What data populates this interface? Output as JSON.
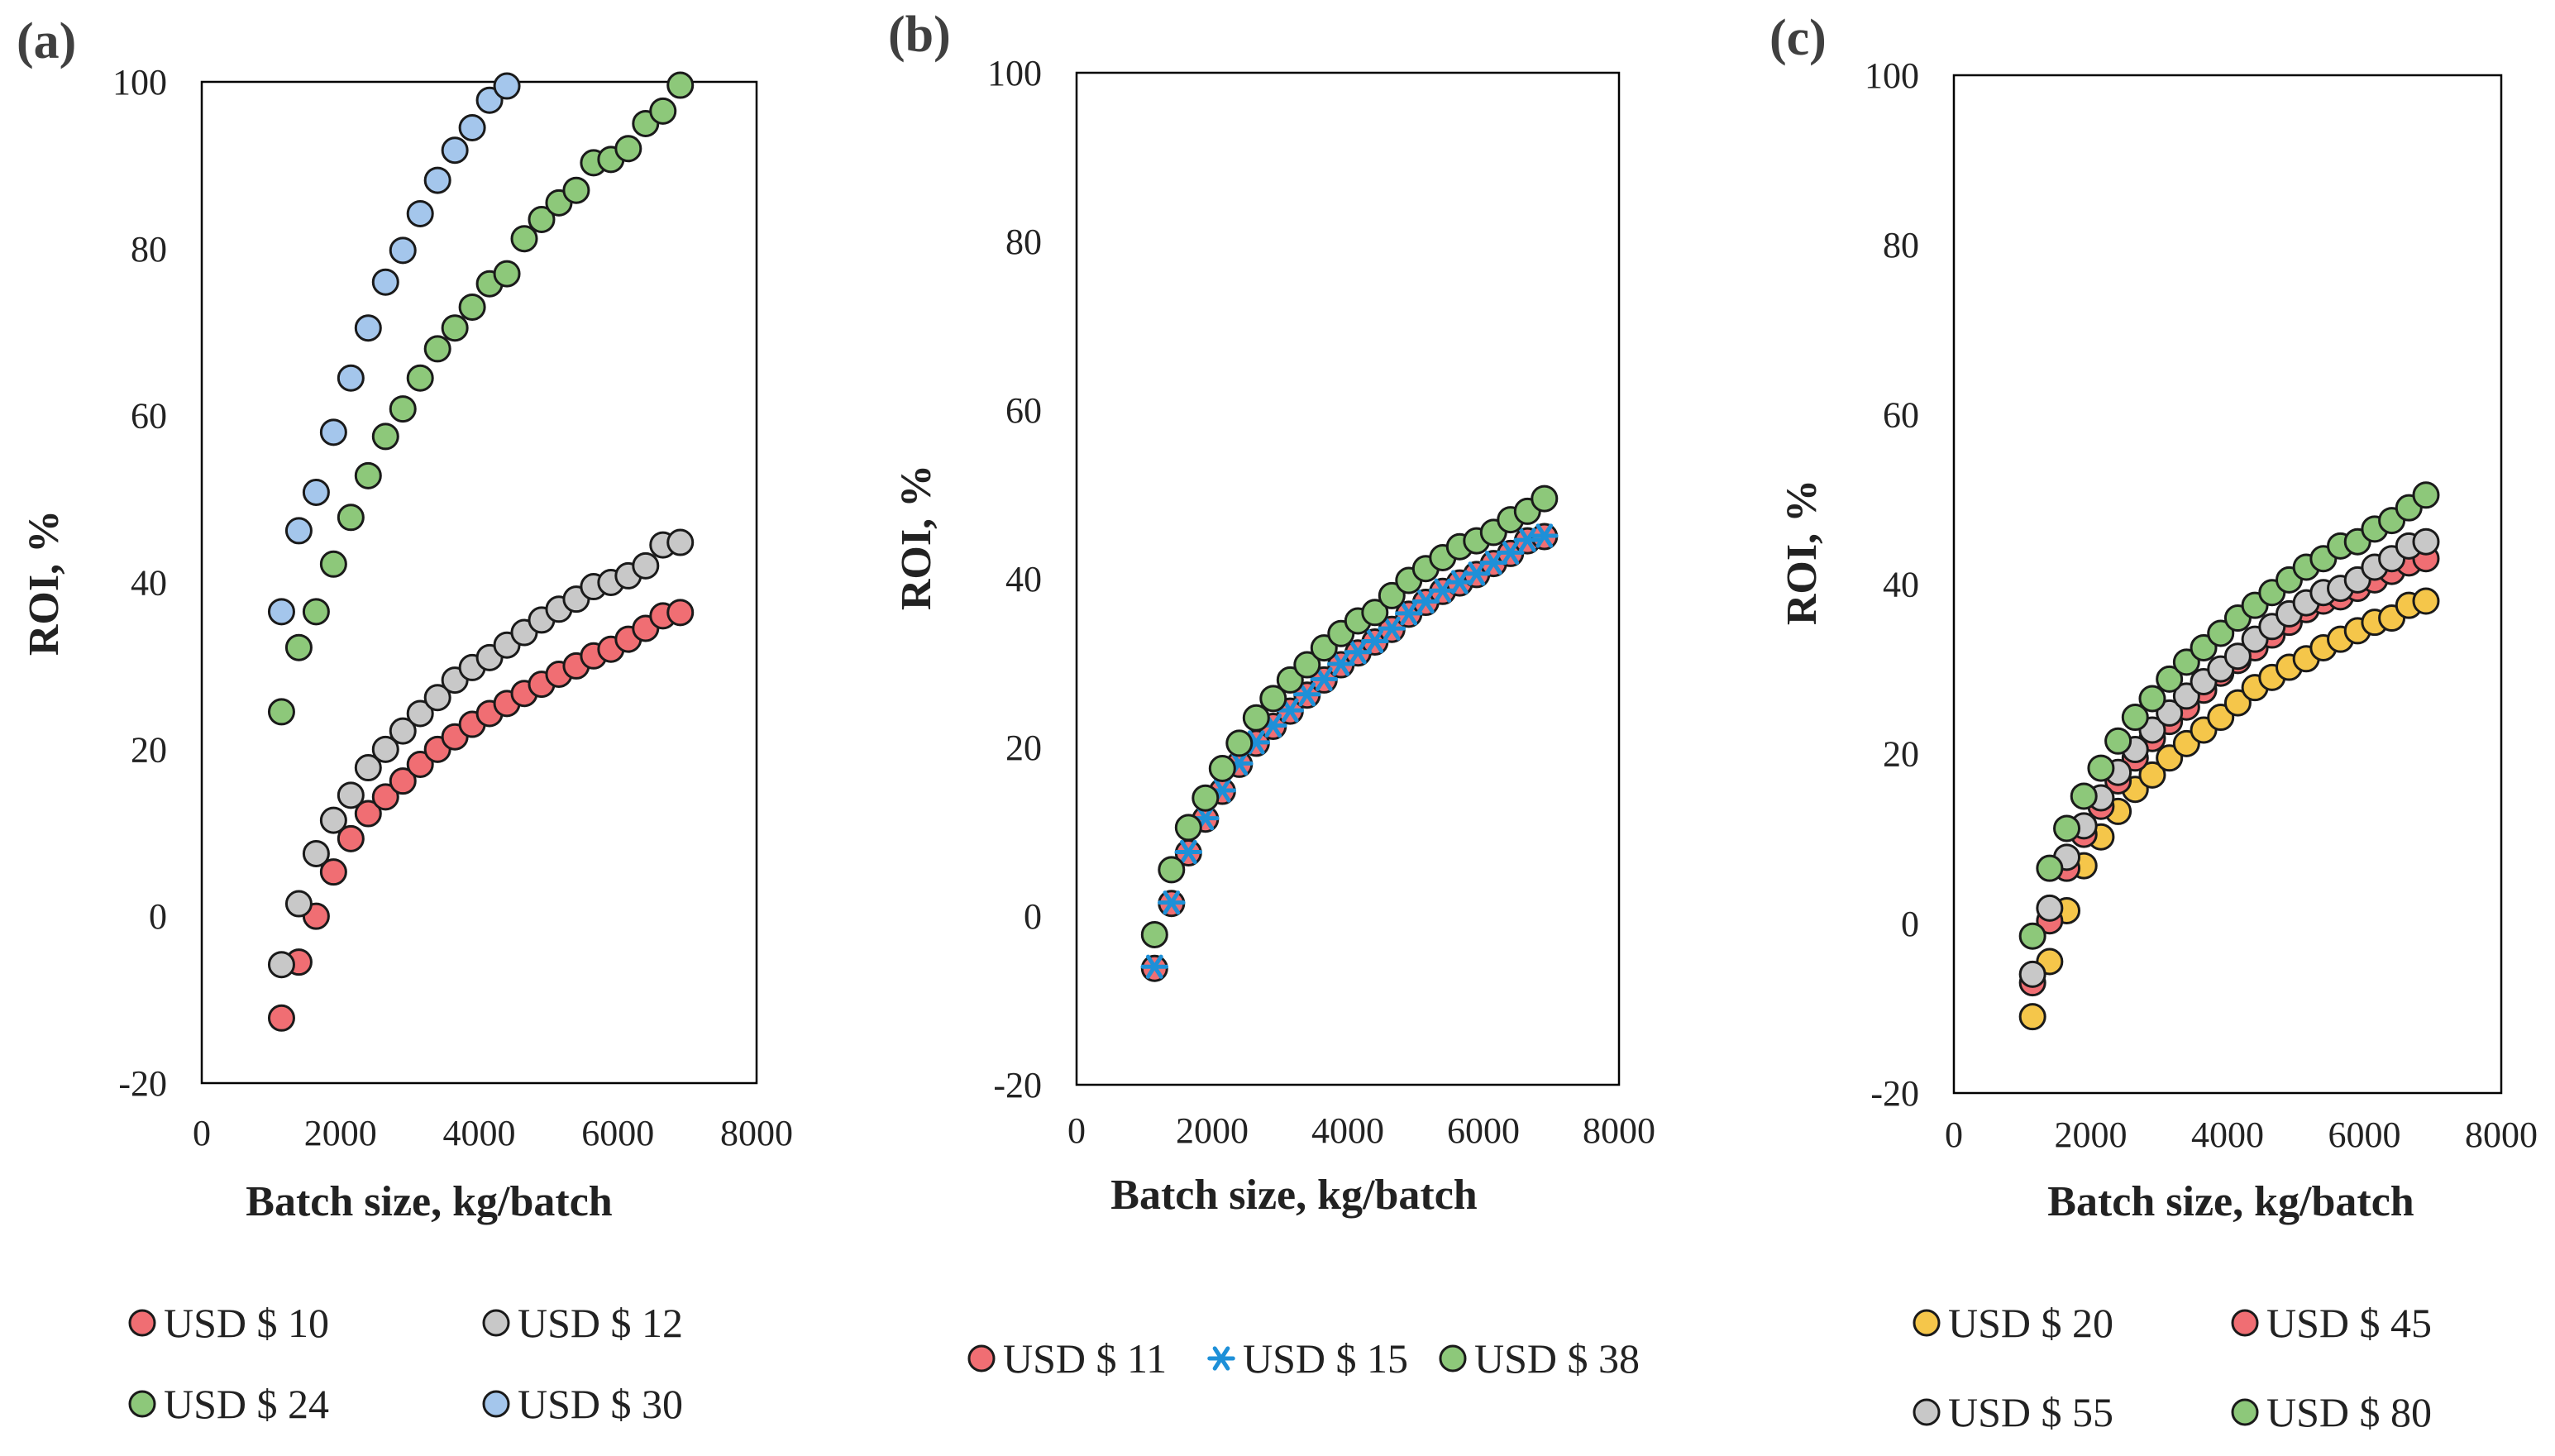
{
  "chart_data": [
    {
      "type": "scatter",
      "panel": "(a)",
      "xlabel": "Batch size, kg/batch",
      "ylabel": "ROI, %",
      "xlim": [
        0,
        8000
      ],
      "ylim": [
        -20,
        100
      ],
      "xticks": [
        "0",
        "2000",
        "4000",
        "6000",
        "8000"
      ],
      "yticks": [
        "-20",
        "0",
        "20",
        "40",
        "60",
        "80",
        "100"
      ],
      "legend_position": "bottom",
      "legend_columns": 2,
      "series": [
        {
          "name": "USD $ 10",
          "color": "#f06e73",
          "marker": "circle",
          "x": [
            1150,
            1400,
            1650,
            1900,
            2150,
            2400,
            2650,
            2900,
            3150,
            3400,
            3650,
            3900,
            4150,
            4400,
            4650,
            4900,
            5150,
            5400,
            5650,
            5900,
            6150,
            6400,
            6650,
            6900
          ],
          "y": [
            -12.2,
            -5.5,
            0,
            5.3,
            9.3,
            12.3,
            14.3,
            16.2,
            18.2,
            20.0,
            21.5,
            23.0,
            24.3,
            25.5,
            26.7,
            27.8,
            29.0,
            30.0,
            31.2,
            32.0,
            33.2,
            34.5,
            36.0,
            36.4
          ]
        },
        {
          "name": "USD $ 12",
          "color": "#c8c8c8",
          "marker": "circle",
          "x": [
            1150,
            1400,
            1650,
            1900,
            2150,
            2400,
            2650,
            2900,
            3150,
            3400,
            3650,
            3900,
            4150,
            4400,
            4650,
            4900,
            5150,
            5400,
            5650,
            5900,
            6150,
            6400,
            6650,
            6900
          ],
          "y": [
            -5.8,
            1.5,
            7.5,
            11.5,
            14.5,
            17.8,
            20.0,
            22.2,
            24.3,
            26.2,
            28.3,
            29.8,
            31.0,
            32.5,
            34.0,
            35.5,
            36.8,
            38.0,
            39.5,
            40.0,
            40.8,
            42.0,
            44.5,
            44.8
          ]
        },
        {
          "name": "USD $ 24",
          "color": "#8dc87a",
          "marker": "circle",
          "x": [
            1150,
            1400,
            1650,
            1900,
            2150,
            2400,
            2650,
            2900,
            3150,
            3400,
            3650,
            3900,
            4150,
            4400,
            4650,
            4900,
            5150,
            5400,
            5650,
            5900,
            6150,
            6400,
            6650,
            6900
          ],
          "y": [
            24.5,
            32.2,
            36.5,
            42.2,
            47.8,
            52.8,
            57.5,
            60.8,
            64.5,
            68.0,
            70.5,
            73.0,
            75.8,
            77.0,
            81.2,
            83.5,
            85.5,
            87.0,
            90.3,
            90.7,
            92.0,
            95.0,
            96.5,
            99.6
          ]
        },
        {
          "name": "USD $ 30",
          "color": "#a4c6ec",
          "marker": "circle",
          "x": [
            1150,
            1400,
            1650,
            1900,
            2150,
            2400,
            2650,
            2900,
            3150,
            3400,
            3650,
            3900,
            4150,
            4400
          ],
          "y": [
            36.5,
            46.2,
            50.8,
            58.0,
            64.5,
            70.5,
            76.0,
            79.8,
            84.2,
            88.2,
            91.8,
            94.5,
            97.8,
            99.5
          ]
        }
      ]
    },
    {
      "type": "scatter",
      "panel": "(b)",
      "xlabel": "Batch size, kg/batch",
      "ylabel": "ROI, %",
      "xlim": [
        0,
        8000
      ],
      "ylim": [
        -20,
        100
      ],
      "xticks": [
        "0",
        "2000",
        "4000",
        "6000",
        "8000"
      ],
      "yticks": [
        "-20",
        "0",
        "20",
        "40",
        "60",
        "80",
        "100"
      ],
      "legend_position": "bottom",
      "legend_columns": 3,
      "series": [
        {
          "name": "USD $ 11",
          "color": "#f06e73",
          "marker": "circle",
          "x": [
            1150,
            1400,
            1650,
            1900,
            2150,
            2400,
            2650,
            2900,
            3150,
            3400,
            3650,
            3900,
            4150,
            4400,
            4650,
            4900,
            5150,
            5400,
            5650,
            5900,
            6150,
            6400,
            6650,
            6900
          ],
          "y": [
            -6.2,
            1.5,
            7.5,
            11.5,
            14.8,
            18.0,
            20.5,
            22.5,
            24.3,
            26.2,
            28.0,
            29.8,
            31.2,
            32.5,
            34.0,
            35.8,
            37.2,
            38.5,
            39.5,
            40.5,
            41.8,
            43.0,
            44.5,
            45.0
          ]
        },
        {
          "name": "USD $ 15",
          "color": "#1e90d8",
          "marker": "star",
          "x": [
            1150,
            1400,
            1650,
            1900,
            2150,
            2400,
            2650,
            2900,
            3150,
            3400,
            3650,
            3900,
            4150,
            4400,
            4650,
            4900,
            5150,
            5400,
            5650,
            5900,
            6150,
            6400,
            6650,
            6900
          ],
          "y": [
            -6.0,
            1.6,
            7.6,
            11.6,
            14.9,
            18.1,
            20.6,
            22.6,
            24.4,
            26.3,
            28.1,
            29.9,
            31.3,
            32.6,
            34.1,
            35.9,
            37.3,
            38.6,
            39.6,
            40.6,
            41.9,
            43.1,
            44.6,
            45.1
          ]
        },
        {
          "name": "USD $ 38",
          "color": "#8dc87a",
          "marker": "circle",
          "x": [
            1150,
            1400,
            1650,
            1900,
            2150,
            2400,
            2650,
            2900,
            3150,
            3400,
            3650,
            3900,
            4150,
            4400,
            4650,
            4900,
            5150,
            5400,
            5650,
            5900,
            6150,
            6400,
            6650,
            6900
          ],
          "y": [
            -2.2,
            5.5,
            10.5,
            14.0,
            17.5,
            20.5,
            23.5,
            25.8,
            28.0,
            29.8,
            31.8,
            33.5,
            35.0,
            36.0,
            38.0,
            39.8,
            41.2,
            42.5,
            43.8,
            44.5,
            45.5,
            47.0,
            48.0,
            49.5
          ]
        }
      ]
    },
    {
      "type": "scatter",
      "panel": "(c)",
      "xlabel": "Batch size, kg/batch",
      "ylabel": "ROI, %",
      "xlim": [
        0,
        8000
      ],
      "ylim": [
        -20,
        100
      ],
      "xticks": [
        "0",
        "2000",
        "4000",
        "6000",
        "8000"
      ],
      "yticks": [
        "-20",
        "0",
        "20",
        "40",
        "60",
        "80",
        "100"
      ],
      "legend_position": "bottom",
      "legend_columns": 2,
      "series": [
        {
          "name": "USD $ 20",
          "color": "#f5c64a",
          "marker": "circle",
          "x": [
            1150,
            1400,
            1650,
            1900,
            2150,
            2400,
            2650,
            2900,
            3150,
            3400,
            3650,
            3900,
            4150,
            4400,
            4650,
            4900,
            5150,
            5400,
            5650,
            5900,
            6150,
            6400,
            6650,
            6900
          ],
          "y": [
            -11.0,
            -4.5,
            1.5,
            6.8,
            10.2,
            13.2,
            15.8,
            17.5,
            19.5,
            21.2,
            22.8,
            24.3,
            26.0,
            27.8,
            29.0,
            30.2,
            31.2,
            32.5,
            33.5,
            34.5,
            35.5,
            36.0,
            37.5,
            38.0
          ]
        },
        {
          "name": "USD $ 45",
          "color": "#f06e73",
          "marker": "circle",
          "x": [
            1150,
            1400,
            1650,
            1900,
            2150,
            2400,
            2650,
            2900,
            3150,
            3400,
            3650,
            3900,
            4150,
            4400,
            4650,
            4900,
            5150,
            5400,
            5650,
            5900,
            6150,
            6400,
            6650,
            6900
          ],
          "y": [
            -7.0,
            0.3,
            6.5,
            10.5,
            13.8,
            16.8,
            19.5,
            21.8,
            23.8,
            25.5,
            27.5,
            29.5,
            31.0,
            32.5,
            34.0,
            35.5,
            37.0,
            38.0,
            38.5,
            39.5,
            40.5,
            41.5,
            42.5,
            43.0
          ]
        },
        {
          "name": "USD $ 55",
          "color": "#c8c8c8",
          "marker": "circle",
          "x": [
            1150,
            1400,
            1650,
            1900,
            2150,
            2400,
            2650,
            2900,
            3150,
            3400,
            3650,
            3900,
            4150,
            4400,
            4650,
            4900,
            5150,
            5400,
            5650,
            5900,
            6150,
            6400,
            6650,
            6900
          ],
          "y": [
            -6.0,
            1.8,
            7.8,
            11.5,
            14.8,
            17.8,
            20.5,
            22.8,
            24.8,
            26.8,
            28.5,
            30.0,
            31.5,
            33.5,
            35.0,
            36.5,
            37.8,
            39.0,
            39.5,
            40.5,
            42.0,
            43.0,
            44.5,
            45.0
          ]
        },
        {
          "name": "USD $ 80",
          "color": "#8dc87a",
          "marker": "circle",
          "x": [
            1150,
            1400,
            1650,
            1900,
            2150,
            2400,
            2650,
            2900,
            3150,
            3400,
            3650,
            3900,
            4150,
            4400,
            4650,
            4900,
            5150,
            5400,
            5650,
            5900,
            6150,
            6400,
            6650,
            6900
          ],
          "y": [
            -1.5,
            6.5,
            11.2,
            15.0,
            18.3,
            21.5,
            24.3,
            26.5,
            28.8,
            30.8,
            32.5,
            34.2,
            36.0,
            37.5,
            39.0,
            40.5,
            42.0,
            43.0,
            44.5,
            45.0,
            46.5,
            47.5,
            49.0,
            50.5
          ]
        }
      ]
    }
  ]
}
